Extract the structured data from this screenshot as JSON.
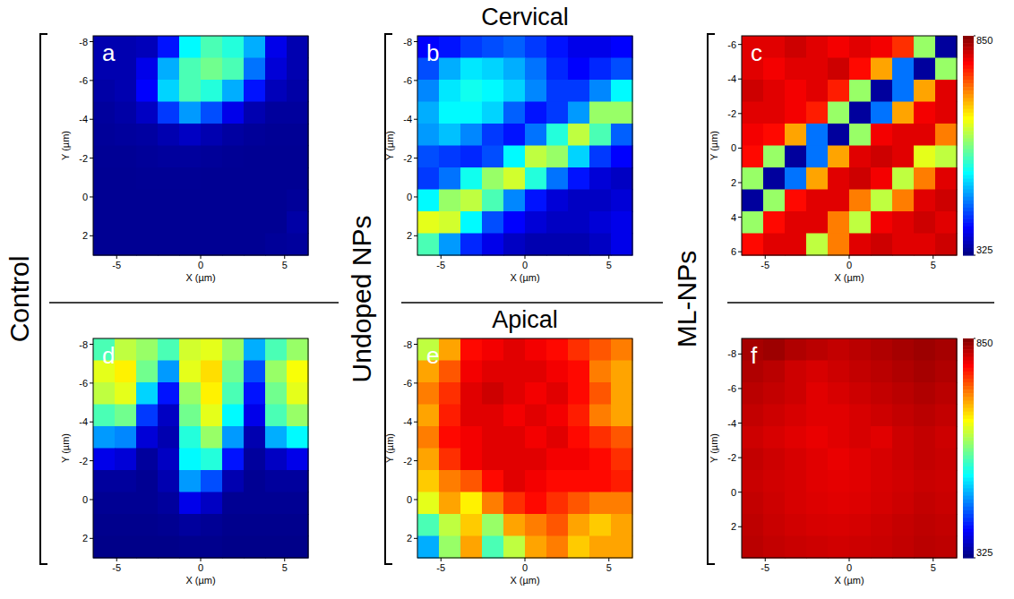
{
  "figure": {
    "rows": [
      "Cervical",
      "Apical"
    ],
    "groups": [
      "Control",
      "Undoped NPs",
      "ML-NPs"
    ]
  },
  "chart_data": [
    {
      "type": "heatmap",
      "panel": "a",
      "xlabel": "X (µm)",
      "ylabel": "Y (µm)",
      "xlim": [
        -6.4,
        6.4
      ],
      "ylim": [
        3.0,
        -8.3
      ],
      "xticks": [
        -5,
        0,
        5
      ],
      "yticks": [
        -8,
        -6,
        -4,
        -2,
        0,
        2
      ],
      "color_range": [
        325,
        850
      ],
      "values": [
        [
          350,
          350,
          355,
          400,
          520,
          560,
          540,
          480,
          380,
          350
        ],
        [
          350,
          350,
          380,
          480,
          560,
          580,
          560,
          450,
          370,
          350
        ],
        [
          345,
          350,
          390,
          500,
          560,
          540,
          480,
          400,
          355,
          345
        ],
        [
          340,
          345,
          360,
          420,
          470,
          430,
          380,
          350,
          340,
          340
        ],
        [
          338,
          340,
          342,
          350,
          360,
          350,
          342,
          338,
          336,
          336
        ],
        [
          336,
          336,
          338,
          340,
          340,
          338,
          336,
          335,
          335,
          335
        ],
        [
          335,
          335,
          336,
          336,
          336,
          335,
          335,
          335,
          335,
          335
        ],
        [
          335,
          335,
          335,
          335,
          335,
          335,
          335,
          335,
          335,
          338
        ],
        [
          335,
          335,
          335,
          335,
          335,
          335,
          335,
          335,
          335,
          345
        ],
        [
          335,
          335,
          335,
          335,
          335,
          335,
          335,
          335,
          338,
          340
        ]
      ]
    },
    {
      "type": "heatmap",
      "panel": "b",
      "xlabel": "X (µm)",
      "ylabel": "Y (µm)",
      "xlim": [
        -6.4,
        6.4
      ],
      "ylim": [
        3.0,
        -8.3
      ],
      "xticks": [
        -5,
        0,
        5
      ],
      "yticks": [
        -8,
        -6,
        -4,
        -2,
        0,
        2
      ],
      "color_range": [
        325,
        850
      ],
      "values": [
        [
          390,
          400,
          420,
          430,
          440,
          420,
          400,
          380,
          380,
          390
        ],
        [
          430,
          480,
          510,
          500,
          480,
          450,
          410,
          390,
          410,
          430
        ],
        [
          460,
          510,
          530,
          520,
          500,
          460,
          420,
          420,
          460,
          520
        ],
        [
          480,
          520,
          520,
          500,
          440,
          400,
          420,
          470,
          600,
          600
        ],
        [
          470,
          490,
          460,
          420,
          400,
          450,
          540,
          620,
          560,
          440
        ],
        [
          430,
          420,
          410,
          430,
          520,
          620,
          600,
          500,
          420,
          390
        ],
        [
          420,
          450,
          530,
          600,
          630,
          540,
          450,
          400,
          370,
          360
        ],
        [
          520,
          600,
          620,
          560,
          460,
          400,
          370,
          360,
          360,
          370
        ],
        [
          640,
          630,
          520,
          430,
          390,
          370,
          360,
          360,
          370,
          380
        ],
        [
          560,
          470,
          410,
          380,
          360,
          350,
          350,
          350,
          360,
          380
        ]
      ]
    },
    {
      "type": "heatmap",
      "panel": "c",
      "xlabel": "X (µm)",
      "ylabel": "Y (µm)",
      "xlim": [
        -6.4,
        6.4
      ],
      "ylim": [
        6.2,
        -6.5
      ],
      "xticks": [
        -5,
        0,
        5
      ],
      "yticks": [
        -6,
        -4,
        -2,
        0,
        2,
        4,
        6
      ],
      "color_range": [
        325,
        850
      ],
      "colorbar_ticks": [
        850,
        325
      ],
      "values": [
        [
          800,
          800,
          810,
          800,
          790,
          800,
          790,
          760,
          600,
          340
        ],
        [
          800,
          790,
          800,
          800,
          810,
          780,
          700,
          450,
          340,
          600
        ],
        [
          810,
          800,
          790,
          800,
          770,
          600,
          340,
          450,
          700,
          800
        ],
        [
          800,
          800,
          790,
          770,
          600,
          340,
          450,
          700,
          790,
          800
        ],
        [
          790,
          780,
          700,
          450,
          340,
          600,
          790,
          800,
          800,
          720
        ],
        [
          780,
          600,
          340,
          450,
          700,
          800,
          810,
          800,
          640,
          620
        ],
        [
          600,
          340,
          450,
          700,
          800,
          810,
          790,
          620,
          720,
          800
        ],
        [
          340,
          600,
          780,
          800,
          800,
          720,
          620,
          720,
          800,
          810
        ],
        [
          600,
          780,
          800,
          800,
          720,
          620,
          790,
          800,
          810,
          800
        ],
        [
          780,
          800,
          800,
          620,
          720,
          800,
          810,
          800,
          800,
          810
        ]
      ]
    },
    {
      "type": "heatmap",
      "panel": "d",
      "xlabel": "X (µm)",
      "ylabel": "Y (µm)",
      "xlim": [
        -6.4,
        6.4
      ],
      "ylim": [
        3.0,
        -8.3
      ],
      "xticks": [
        -5,
        0,
        5
      ],
      "yticks": [
        -8,
        -6,
        -4,
        -2,
        0,
        2
      ],
      "color_range": [
        325,
        850
      ],
      "values": [
        [
          560,
          620,
          600,
          560,
          630,
          640,
          600,
          480,
          560,
          600
        ],
        [
          640,
          660,
          580,
          470,
          640,
          670,
          580,
          430,
          600,
          650
        ],
        [
          620,
          640,
          500,
          400,
          600,
          660,
          560,
          400,
          580,
          640
        ],
        [
          560,
          580,
          420,
          360,
          580,
          640,
          520,
          380,
          560,
          600
        ],
        [
          470,
          460,
          370,
          350,
          540,
          600,
          470,
          350,
          480,
          520
        ],
        [
          380,
          370,
          340,
          360,
          520,
          540,
          400,
          340,
          360,
          380
        ],
        [
          340,
          340,
          335,
          350,
          470,
          430,
          350,
          335,
          340,
          340
        ],
        [
          335,
          335,
          335,
          340,
          380,
          360,
          335,
          335,
          335,
          335
        ],
        [
          332,
          332,
          332,
          334,
          340,
          336,
          332,
          332,
          332,
          332
        ],
        [
          330,
          330,
          330,
          330,
          332,
          332,
          330,
          330,
          330,
          330
        ]
      ]
    },
    {
      "type": "heatmap",
      "panel": "e",
      "xlabel": "X (µm)",
      "ylabel": "Y (µm)",
      "xlim": [
        -6.4,
        6.4
      ],
      "ylim": [
        3.0,
        -8.3
      ],
      "xticks": [
        -5,
        0,
        5
      ],
      "yticks": [
        -8,
        -6,
        -4,
        -2,
        0,
        2
      ],
      "color_range": [
        325,
        850
      ],
      "values": [
        [
          620,
          700,
          780,
          790,
          800,
          790,
          780,
          760,
          740,
          720
        ],
        [
          700,
          740,
          790,
          800,
          800,
          800,
          790,
          780,
          720,
          700
        ],
        [
          720,
          760,
          800,
          810,
          800,
          790,
          800,
          780,
          740,
          700
        ],
        [
          700,
          770,
          800,
          800,
          790,
          800,
          790,
          770,
          720,
          700
        ],
        [
          720,
          780,
          790,
          800,
          800,
          790,
          800,
          780,
          760,
          740
        ],
        [
          700,
          760,
          790,
          800,
          800,
          800,
          790,
          790,
          780,
          760
        ],
        [
          680,
          720,
          740,
          780,
          800,
          790,
          780,
          780,
          780,
          770
        ],
        [
          640,
          700,
          660,
          720,
          760,
          780,
          760,
          740,
          720,
          720
        ],
        [
          560,
          620,
          680,
          600,
          700,
          720,
          740,
          700,
          680,
          700
        ],
        [
          480,
          600,
          700,
          560,
          620,
          700,
          720,
          680,
          700,
          700
        ]
      ]
    },
    {
      "type": "heatmap",
      "panel": "f",
      "xlabel": "X (µm)",
      "ylabel": "Y (µm)",
      "xlim": [
        -6.4,
        6.4
      ],
      "ylim": [
        3.8,
        -8.9
      ],
      "xticks": [
        -5,
        0,
        5
      ],
      "yticks": [
        -8,
        -6,
        -4,
        -2,
        0,
        2
      ],
      "color_range": [
        325,
        850
      ],
      "colorbar_ticks": [
        850,
        325
      ],
      "values": [
        [
          830,
          835,
          825,
          820,
          815,
          820,
          825,
          830,
          835,
          830
        ],
        [
          825,
          820,
          810,
          805,
          810,
          815,
          820,
          825,
          830,
          825
        ],
        [
          820,
          815,
          810,
          800,
          805,
          810,
          815,
          820,
          825,
          820
        ],
        [
          815,
          810,
          805,
          800,
          800,
          805,
          810,
          815,
          820,
          815
        ],
        [
          810,
          805,
          800,
          795,
          800,
          805,
          800,
          810,
          815,
          810
        ],
        [
          815,
          810,
          805,
          800,
          795,
          800,
          805,
          810,
          815,
          812
        ],
        [
          812,
          808,
          805,
          800,
          798,
          800,
          805,
          808,
          812,
          810
        ],
        [
          815,
          810,
          805,
          802,
          800,
          802,
          806,
          810,
          815,
          812
        ],
        [
          818,
          812,
          808,
          805,
          804,
          806,
          810,
          814,
          818,
          815
        ],
        [
          820,
          815,
          812,
          810,
          808,
          810,
          812,
          816,
          820,
          818
        ]
      ]
    }
  ]
}
